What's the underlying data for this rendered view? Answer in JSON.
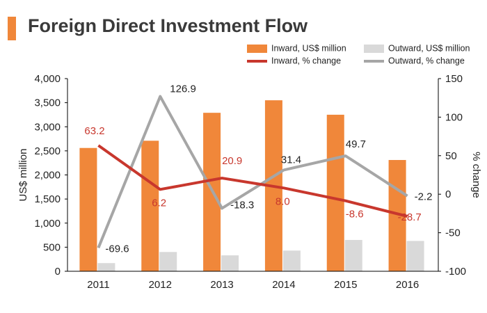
{
  "colors": {
    "accent": "#f0873a",
    "inward_bar": "#f0873a",
    "outward_bar": "#d9d9d9",
    "inward_line": "#c8372d",
    "outward_line": "#a6a6a6",
    "axis": "#000000",
    "text": "#222222"
  },
  "chart_data": {
    "type": "bar",
    "title": "Foreign Direct Investment Flow",
    "categories": [
      "2011",
      "2012",
      "2013",
      "2014",
      "2015",
      "2016"
    ],
    "xlabel": "",
    "ylabel": "US$ million",
    "ylabel_right": "% change",
    "ylim": [
      0,
      4000
    ],
    "ylim_right": [
      -100,
      150
    ],
    "yticks": [
      "0",
      "500",
      "1,000",
      "1,500",
      "2,000",
      "2,500",
      "3,000",
      "3,500",
      "4,000"
    ],
    "yticks_right": [
      "-100",
      "-50",
      "0",
      "50",
      "100",
      "150"
    ],
    "grid": false,
    "legend_position": "top-right",
    "series": [
      {
        "name": "Inward, US$ million",
        "type": "bar",
        "axis": "left",
        "values": [
          2560,
          2710,
          3290,
          3550,
          3250,
          2310
        ]
      },
      {
        "name": "Outward, US$ million",
        "type": "bar",
        "axis": "left",
        "values": [
          170,
          400,
          330,
          430,
          650,
          630
        ]
      },
      {
        "name": "Inward, % change",
        "type": "line",
        "axis": "right",
        "values": [
          63.2,
          6.2,
          20.9,
          8.0,
          -8.6,
          -28.7
        ],
        "labels": [
          "63.2",
          "6.2",
          "20.9",
          "8.0",
          "-8.6",
          "-28.7"
        ]
      },
      {
        "name": "Outward, % change",
        "type": "line",
        "axis": "right",
        "values": [
          -69.6,
          126.9,
          -18.3,
          31.4,
          49.7,
          -2.2
        ],
        "labels": [
          "-69.6",
          "126.9",
          "-18.3",
          "31.4",
          "49.7",
          "-2.2"
        ]
      }
    ]
  }
}
